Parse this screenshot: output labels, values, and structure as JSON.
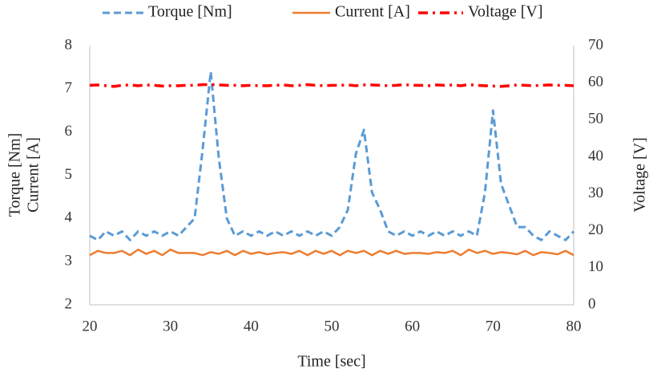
{
  "chart_data": {
    "type": "line",
    "xlabel": "Time [sec]",
    "ylabel": [
      "Torque [Nm]",
      "Current [A]"
    ],
    "y2label": "Voltage [V]",
    "x": [
      20,
      21,
      22,
      23,
      24,
      25,
      26,
      27,
      28,
      29,
      30,
      31,
      32,
      33,
      34,
      35,
      36,
      37,
      38,
      39,
      40,
      41,
      42,
      43,
      44,
      45,
      46,
      47,
      48,
      49,
      50,
      51,
      52,
      53,
      54,
      55,
      56,
      57,
      58,
      59,
      60,
      61,
      62,
      63,
      64,
      65,
      66,
      67,
      68,
      69,
      70,
      71,
      72,
      73,
      74,
      75,
      76,
      77,
      78,
      79,
      80
    ],
    "xlim": [
      20,
      80
    ],
    "xticks": [
      20,
      30,
      40,
      50,
      60,
      70,
      80
    ],
    "ylim": [
      2,
      8
    ],
    "yticks": [
      2,
      3,
      4,
      5,
      6,
      7,
      8
    ],
    "y2lim": [
      0,
      70
    ],
    "y2ticks": [
      0,
      10,
      20,
      30,
      40,
      50,
      60,
      70
    ],
    "grid": false,
    "legend": "top",
    "series": [
      {
        "name": "Torque [Nm]",
        "color": "#5b9bd5",
        "linestyle": "dashed",
        "values": [
          3.6,
          3.5,
          3.7,
          3.6,
          3.7,
          3.5,
          3.7,
          3.6,
          3.7,
          3.6,
          3.7,
          3.6,
          3.8,
          4.0,
          5.6,
          7.4,
          5.4,
          4.0,
          3.6,
          3.7,
          3.6,
          3.7,
          3.6,
          3.7,
          3.6,
          3.7,
          3.6,
          3.7,
          3.6,
          3.7,
          3.6,
          3.8,
          4.2,
          5.5,
          6.05,
          4.6,
          4.2,
          3.7,
          3.6,
          3.7,
          3.6,
          3.7,
          3.6,
          3.7,
          3.6,
          3.7,
          3.6,
          3.7,
          3.6,
          4.6,
          6.5,
          4.8,
          4.3,
          3.8,
          3.8,
          3.6,
          3.5,
          3.7,
          3.6,
          3.5,
          3.7
        ]
      },
      {
        "name": "Current [A]",
        "color": "#ed7d31",
        "linestyle": "solid",
        "values": [
          3.15,
          3.25,
          3.2,
          3.2,
          3.25,
          3.15,
          3.28,
          3.18,
          3.25,
          3.15,
          3.28,
          3.2,
          3.2,
          3.2,
          3.15,
          3.22,
          3.18,
          3.25,
          3.15,
          3.25,
          3.18,
          3.22,
          3.17,
          3.2,
          3.22,
          3.18,
          3.25,
          3.15,
          3.25,
          3.18,
          3.25,
          3.15,
          3.25,
          3.2,
          3.25,
          3.15,
          3.25,
          3.18,
          3.25,
          3.18,
          3.2,
          3.2,
          3.18,
          3.22,
          3.2,
          3.25,
          3.15,
          3.28,
          3.2,
          3.25,
          3.18,
          3.22,
          3.2,
          3.17,
          3.25,
          3.15,
          3.22,
          3.2,
          3.17,
          3.25,
          3.15
        ]
      },
      {
        "name": "Voltage [V]",
        "color": "#ff0000",
        "linestyle": "dashdot",
        "axis": "y2",
        "values": [
          59.3,
          59.4,
          59.2,
          59.0,
          59.3,
          59.4,
          59.2,
          59.4,
          59.3,
          59.1,
          59.2,
          59.2,
          59.3,
          59.3,
          59.5,
          59.5,
          59.4,
          59.3,
          59.3,
          59.2,
          59.3,
          59.2,
          59.2,
          59.3,
          59.4,
          59.2,
          59.3,
          59.5,
          59.3,
          59.2,
          59.3,
          59.3,
          59.4,
          59.2,
          59.4,
          59.4,
          59.3,
          59.2,
          59.3,
          59.5,
          59.3,
          59.3,
          59.2,
          59.4,
          59.3,
          59.4,
          59.2,
          59.5,
          59.3,
          59.2,
          59.1,
          59.0,
          59.2,
          59.4,
          59.3,
          59.2,
          59.3,
          59.4,
          59.3,
          59.3,
          59.2
        ]
      }
    ]
  }
}
